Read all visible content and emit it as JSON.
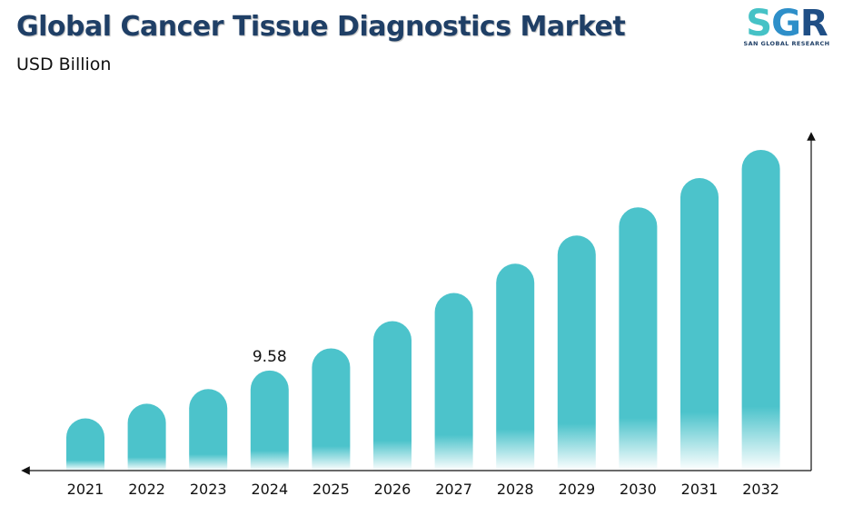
{
  "header": {
    "title": "Global Cancer Tissue Diagnostics Market",
    "subtitle": "USD Billion"
  },
  "logo": {
    "mark_s": "S",
    "mark_g": "G",
    "mark_r": "R",
    "tagline": "SAN GLOBAL RESEARCH"
  },
  "colors": {
    "bar": "#4cc3cb",
    "title": "#1f3f66",
    "axis": "#111111"
  },
  "chart_data": {
    "type": "bar",
    "title": "Global Cancer Tissue Diagnostics Market",
    "ylabel": "USD Billion",
    "categories": [
      "2021",
      "2022",
      "2023",
      "2024",
      "2025",
      "2026",
      "2027",
      "2028",
      "2029",
      "2030",
      "2031",
      "2032"
    ],
    "values": [
      5.0,
      6.4,
      7.8,
      9.58,
      11.7,
      14.3,
      17.0,
      19.8,
      22.5,
      25.2,
      28.0,
      30.7
    ],
    "data_labels": [
      {
        "category": "2024",
        "text": "9.58"
      }
    ],
    "ylim": [
      0,
      32
    ],
    "grid": false,
    "legend": "none"
  }
}
